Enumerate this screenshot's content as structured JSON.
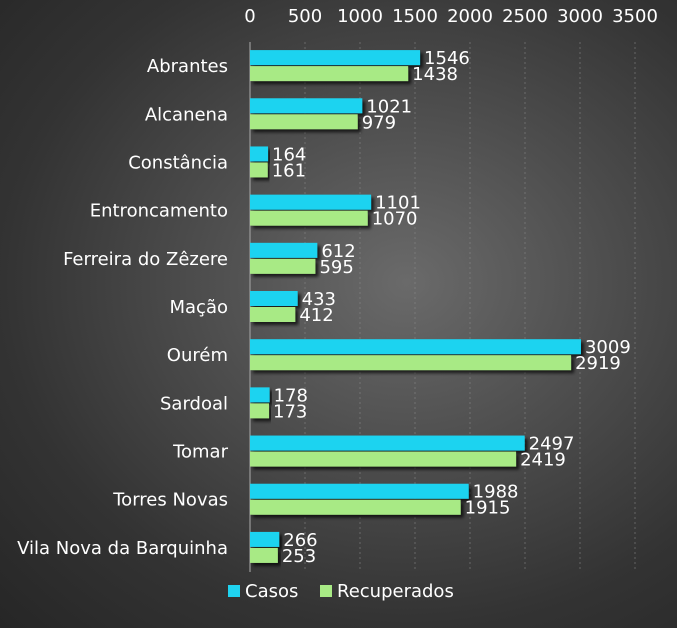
{
  "chart_data": {
    "type": "bar",
    "orientation": "horizontal",
    "title": "",
    "xlabel": "",
    "ylabel": "",
    "xlim": [
      0,
      3500
    ],
    "x_ticks": [
      0,
      500,
      1000,
      1500,
      2000,
      2500,
      3000,
      3500
    ],
    "x_axis_position": "top",
    "grid": true,
    "legend_position": "bottom",
    "categories": [
      "Abrantes",
      "Alcanena",
      "Constância",
      "Entroncamento",
      "Ferreira do Zêzere",
      "Mação",
      "Ourém",
      "Sardoal",
      "Tomar",
      "Torres Novas",
      "Vila Nova da Barquinha"
    ],
    "series": [
      {
        "name": "Casos",
        "color": "#1fd3f0",
        "values": [
          1546,
          1021,
          164,
          1101,
          612,
          433,
          3009,
          178,
          2497,
          1988,
          266
        ]
      },
      {
        "name": "Recuperados",
        "color": "#a8ea85",
        "values": [
          1438,
          979,
          161,
          1070,
          595,
          412,
          2919,
          173,
          2419,
          1915,
          253
        ]
      }
    ]
  }
}
